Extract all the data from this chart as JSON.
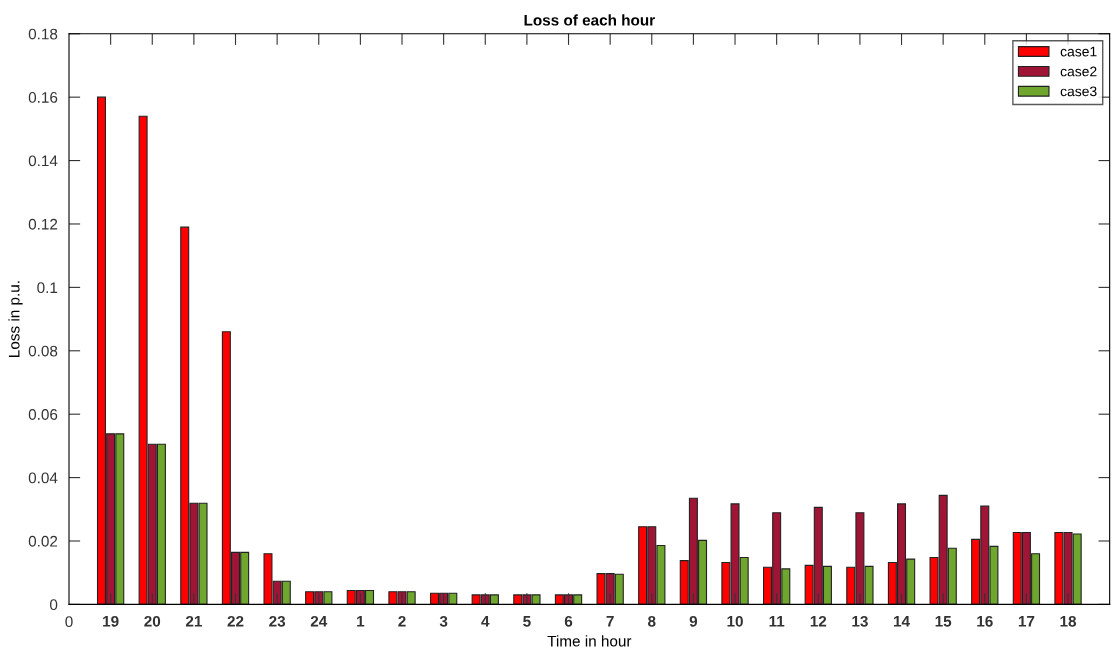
{
  "chart_data": {
    "type": "bar",
    "title": "Loss of each hour",
    "xlabel": "Time in hour",
    "ylabel": "Loss in p.u.",
    "categories": [
      "19",
      "20",
      "21",
      "22",
      "23",
      "24",
      "1",
      "2",
      "3",
      "4",
      "5",
      "6",
      "7",
      "8",
      "9",
      "10",
      "11",
      "12",
      "13",
      "14",
      "15",
      "16",
      "17",
      "18"
    ],
    "annotations": [
      "0"
    ],
    "ylim": [
      0,
      0.18
    ],
    "yticks": [
      0,
      0.02,
      0.04,
      0.06,
      0.08,
      0.1,
      0.12,
      0.14,
      0.16,
      0.18
    ],
    "series": [
      {
        "name": "case1",
        "color": "#ff0000",
        "values": [
          0.16,
          0.154,
          0.119,
          0.086,
          0.016,
          0.004,
          0.0044,
          0.004,
          0.0035,
          0.003,
          0.003,
          0.003,
          0.0097,
          0.0245,
          0.0138,
          0.0132,
          0.0117,
          0.0123,
          0.0117,
          0.0132,
          0.0148,
          0.0205,
          0.0227,
          0.0227
        ]
      },
      {
        "name": "case2",
        "color": "#a01535",
        "values": [
          0.0538,
          0.0505,
          0.0319,
          0.0164,
          0.0073,
          0.004,
          0.0044,
          0.004,
          0.0035,
          0.003,
          0.003,
          0.003,
          0.0097,
          0.0245,
          0.0335,
          0.0317,
          0.0289,
          0.0306,
          0.0289,
          0.0317,
          0.0344,
          0.031,
          0.0227,
          0.0227
        ]
      },
      {
        "name": "case3",
        "color": "#6fa62e",
        "values": [
          0.0538,
          0.0505,
          0.0319,
          0.0164,
          0.0073,
          0.004,
          0.0044,
          0.004,
          0.0035,
          0.003,
          0.003,
          0.003,
          0.0095,
          0.0186,
          0.0202,
          0.0148,
          0.0112,
          0.012,
          0.012,
          0.0143,
          0.0177,
          0.0183,
          0.016,
          0.0222
        ]
      }
    ],
    "legend": "top right",
    "grid": false
  }
}
